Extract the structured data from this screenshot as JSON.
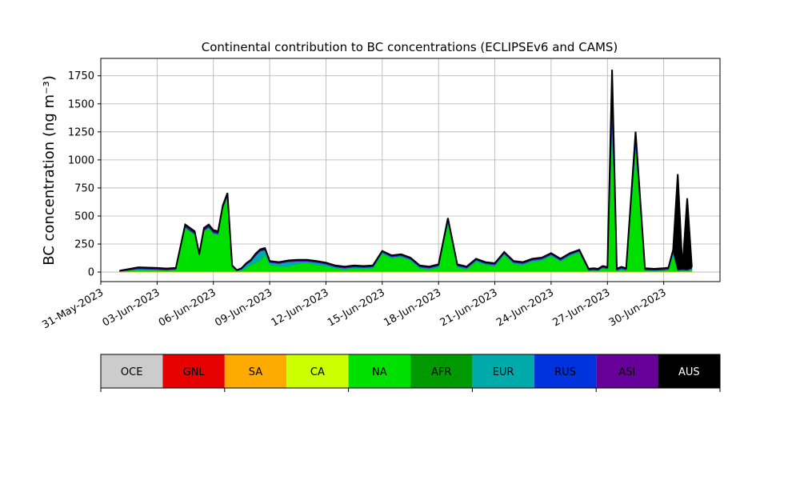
{
  "chart_data": {
    "type": "area",
    "title": "Continental contribution to BC concentrations (ECLIPSEv6 and CAMS)",
    "ylabel": "BC concentration (ng m⁻³)",
    "xlabel": "",
    "ylim": [
      -85,
      1905
    ],
    "xlim": [
      "2023-05-31",
      "2023-07-03"
    ],
    "grid": true,
    "x_ticks": [
      "31-May-2023",
      "03-Jun-2023",
      "06-Jun-2023",
      "09-Jun-2023",
      "12-Jun-2023",
      "15-Jun-2023",
      "18-Jun-2023",
      "21-Jun-2023",
      "24-Jun-2023",
      "27-Jun-2023",
      "30-Jun-2023"
    ],
    "y_ticks": [
      0,
      250,
      500,
      750,
      1000,
      1250,
      1500,
      1750
    ],
    "x": [
      "2023-06-01",
      "2023-06-02",
      "2023-06-03",
      "2023-06-03 12:00",
      "2023-06-04",
      "2023-06-04 12:00",
      "2023-06-05",
      "2023-06-05 06:00",
      "2023-06-05 12:00",
      "2023-06-05 18:00",
      "2023-06-06",
      "2023-06-06 06:00",
      "2023-06-06 12:00",
      "2023-06-06 18:00",
      "2023-06-07",
      "2023-06-07 06:00",
      "2023-06-07 12:00",
      "2023-06-07 18:00",
      "2023-06-08",
      "2023-06-08 06:00",
      "2023-06-08 12:00",
      "2023-06-08 18:00",
      "2023-06-09",
      "2023-06-09 12:00",
      "2023-06-10",
      "2023-06-10 12:00",
      "2023-06-11",
      "2023-06-11 12:00",
      "2023-06-12",
      "2023-06-12 12:00",
      "2023-06-13",
      "2023-06-13 12:00",
      "2023-06-14",
      "2023-06-14 12:00",
      "2023-06-15",
      "2023-06-15 12:00",
      "2023-06-16",
      "2023-06-16 12:00",
      "2023-06-17",
      "2023-06-17 12:00",
      "2023-06-18",
      "2023-06-18 12:00",
      "2023-06-19",
      "2023-06-19 12:00",
      "2023-06-20",
      "2023-06-20 12:00",
      "2023-06-21",
      "2023-06-21 12:00",
      "2023-06-22",
      "2023-06-22 12:00",
      "2023-06-23",
      "2023-06-23 12:00",
      "2023-06-24",
      "2023-06-24 12:00",
      "2023-06-25",
      "2023-06-25 12:00",
      "2023-06-26",
      "2023-06-26 06:00",
      "2023-06-26 12:00",
      "2023-06-26 18:00",
      "2023-06-27",
      "2023-06-27 06:00",
      "2023-06-27 12:00",
      "2023-06-27 18:00",
      "2023-06-28",
      "2023-06-28 12:00",
      "2023-06-29",
      "2023-06-29 12:00",
      "2023-06-30",
      "2023-06-30 06:00",
      "2023-06-30 12:00",
      "2023-06-30 18:00",
      "2023-07-01",
      "2023-07-01 06:00",
      "2023-07-01 12:00"
    ],
    "series": [
      {
        "name": "OCE",
        "color": "#cccccc",
        "values": [
          0,
          0,
          0,
          0,
          0,
          0,
          0,
          0,
          0,
          0,
          0,
          0,
          0,
          0,
          0,
          0,
          0,
          0,
          0,
          0,
          0,
          0,
          0,
          0,
          0,
          0,
          0,
          0,
          0,
          0,
          0,
          0,
          0,
          0,
          0,
          0,
          0,
          0,
          0,
          0,
          0,
          0,
          0,
          0,
          0,
          0,
          0,
          0,
          0,
          0,
          0,
          0,
          0,
          0,
          0,
          0,
          0,
          0,
          0,
          0,
          0,
          0,
          0,
          0,
          0,
          0,
          0,
          0,
          0,
          0,
          0,
          0,
          0,
          0,
          0
        ]
      },
      {
        "name": "GNL",
        "color": "#e60000",
        "values": [
          0,
          0,
          0,
          0,
          0,
          0,
          0,
          0,
          0,
          0,
          0,
          0,
          0,
          0,
          0,
          0,
          0,
          0,
          0,
          0,
          0,
          0,
          0,
          0,
          0,
          0,
          0,
          0,
          0,
          0,
          0,
          0,
          0,
          0,
          0,
          0,
          0,
          0,
          0,
          0,
          0,
          0,
          0,
          0,
          0,
          0,
          0,
          0,
          0,
          0,
          0,
          0,
          0,
          0,
          0,
          0,
          0,
          0,
          0,
          0,
          0,
          0,
          0,
          0,
          0,
          0,
          0,
          0,
          0,
          0,
          0,
          0,
          0,
          0,
          0
        ]
      },
      {
        "name": "SA",
        "color": "#ffaa00",
        "values": [
          2,
          2,
          2,
          2,
          2,
          2,
          2,
          2,
          2,
          2,
          2,
          2,
          2,
          2,
          2,
          2,
          2,
          2,
          2,
          2,
          2,
          2,
          2,
          2,
          2,
          2,
          2,
          2,
          2,
          2,
          2,
          2,
          2,
          2,
          2,
          2,
          2,
          2,
          2,
          2,
          2,
          2,
          2,
          2,
          2,
          2,
          2,
          2,
          2,
          2,
          2,
          2,
          2,
          2,
          2,
          2,
          2,
          2,
          2,
          2,
          2,
          2,
          2,
          2,
          2,
          2,
          2,
          2,
          2,
          2,
          2,
          2,
          2,
          2,
          2
        ]
      },
      {
        "name": "CA",
        "color": "#ccff00",
        "values": [
          2,
          2,
          2,
          2,
          2,
          2,
          2,
          2,
          2,
          2,
          2,
          2,
          2,
          2,
          2,
          2,
          2,
          2,
          2,
          2,
          2,
          2,
          2,
          2,
          2,
          2,
          2,
          2,
          2,
          2,
          2,
          2,
          2,
          2,
          2,
          2,
          2,
          2,
          2,
          2,
          2,
          2,
          2,
          2,
          2,
          2,
          2,
          2,
          2,
          2,
          2,
          2,
          2,
          2,
          2,
          2,
          2,
          2,
          2,
          2,
          2,
          2,
          2,
          2,
          2,
          2,
          2,
          2,
          2,
          2,
          2,
          2,
          2,
          2,
          2
        ]
      },
      {
        "name": "NA",
        "color": "#00e000",
        "values": [
          0,
          20,
          15,
          10,
          15,
          390,
          330,
          140,
          360,
          390,
          340,
          330,
          560,
          670,
          40,
          5,
          10,
          40,
          60,
          80,
          100,
          150,
          60,
          50,
          45,
          70,
          80,
          60,
          50,
          30,
          20,
          30,
          25,
          30,
          160,
          120,
          130,
          100,
          30,
          20,
          40,
          430,
          40,
          20,
          90,
          60,
          50,
          150,
          70,
          60,
          90,
          100,
          140,
          90,
          140,
          170,
          5,
          10,
          5,
          30,
          20,
          1300,
          5,
          20,
          10,
          1100,
          10,
          5,
          10,
          15,
          150,
          5,
          10,
          5,
          20
        ]
      },
      {
        "name": "AFR",
        "color": "#009900",
        "values": [
          0,
          1,
          1,
          1,
          1,
          2,
          2,
          1,
          2,
          2,
          2,
          2,
          3,
          3,
          1,
          1,
          1,
          1,
          1,
          1,
          1,
          1,
          1,
          1,
          1,
          1,
          1,
          1,
          1,
          1,
          1,
          1,
          1,
          1,
          1,
          1,
          1,
          1,
          1,
          1,
          1,
          2,
          1,
          1,
          1,
          1,
          1,
          1,
          1,
          1,
          1,
          1,
          1,
          1,
          1,
          1,
          1,
          1,
          1,
          1,
          1,
          5,
          1,
          1,
          1,
          5,
          1,
          1,
          1,
          1,
          1,
          1,
          1,
          1,
          1
        ]
      },
      {
        "name": "EUR",
        "color": "#00aaaa",
        "values": [
          2,
          3,
          3,
          3,
          3,
          3,
          3,
          3,
          3,
          3,
          3,
          3,
          3,
          3,
          3,
          3,
          10,
          20,
          30,
          60,
          80,
          40,
          20,
          20,
          40,
          20,
          10,
          20,
          15,
          10,
          10,
          10,
          10,
          10,
          10,
          10,
          10,
          10,
          10,
          10,
          10,
          10,
          10,
          10,
          10,
          10,
          10,
          10,
          10,
          10,
          10,
          10,
          10,
          10,
          10,
          10,
          5,
          5,
          5,
          5,
          5,
          50,
          5,
          5,
          5,
          20,
          5,
          5,
          5,
          5,
          20,
          5,
          5,
          5,
          5
        ]
      },
      {
        "name": "RUS",
        "color": "#0033dd",
        "values": [
          1,
          3,
          3,
          3,
          3,
          5,
          5,
          3,
          5,
          5,
          5,
          5,
          5,
          5,
          2,
          1,
          2,
          3,
          3,
          5,
          5,
          5,
          3,
          3,
          3,
          3,
          3,
          3,
          3,
          3,
          3,
          3,
          3,
          3,
          3,
          3,
          3,
          3,
          3,
          3,
          3,
          10,
          3,
          3,
          3,
          3,
          3,
          3,
          3,
          3,
          3,
          3,
          3,
          3,
          3,
          3,
          3,
          3,
          3,
          3,
          3,
          100,
          5,
          5,
          3,
          50,
          3,
          3,
          3,
          3,
          10,
          3,
          3,
          3,
          3
        ]
      },
      {
        "name": "ASI",
        "color": "#660099",
        "values": [
          2,
          5,
          5,
          5,
          5,
          10,
          10,
          5,
          10,
          10,
          10,
          10,
          10,
          10,
          5,
          2,
          3,
          5,
          5,
          5,
          5,
          5,
          5,
          5,
          5,
          5,
          5,
          5,
          5,
          5,
          5,
          5,
          5,
          5,
          5,
          5,
          5,
          5,
          5,
          5,
          5,
          10,
          5,
          5,
          5,
          5,
          5,
          5,
          5,
          5,
          5,
          5,
          5,
          5,
          5,
          5,
          5,
          5,
          5,
          5,
          5,
          50,
          5,
          5,
          5,
          20,
          5,
          5,
          5,
          5,
          5,
          5,
          5,
          5,
          5
        ]
      },
      {
        "name": "AUS",
        "color": "#000000",
        "values": [
          3,
          7,
          6,
          6,
          6,
          10,
          10,
          6,
          10,
          10,
          10,
          10,
          10,
          10,
          5,
          2,
          4,
          6,
          6,
          9,
          9,
          9,
          6,
          6,
          6,
          6,
          6,
          6,
          6,
          6,
          6,
          6,
          6,
          6,
          6,
          6,
          6,
          6,
          6,
          6,
          6,
          15,
          6,
          6,
          6,
          6,
          6,
          6,
          6,
          6,
          6,
          6,
          6,
          6,
          6,
          6,
          6,
          6,
          6,
          6,
          6,
          295,
          6,
          6,
          6,
          53,
          6,
          6,
          6,
          6,
          9,
          850,
          6,
          635,
          6
        ]
      }
    ],
    "legend": {
      "placement": "bottom",
      "items": [
        {
          "label": "OCE",
          "color": "#cccccc",
          "text_color": "#000000"
        },
        {
          "label": "GNL",
          "color": "#e60000",
          "text_color": "#000000"
        },
        {
          "label": "SA",
          "color": "#ffaa00",
          "text_color": "#000000"
        },
        {
          "label": "CA",
          "color": "#ccff00",
          "text_color": "#000000"
        },
        {
          "label": "NA",
          "color": "#00e000",
          "text_color": "#000000"
        },
        {
          "label": "AFR",
          "color": "#009900",
          "text_color": "#000000"
        },
        {
          "label": "EUR",
          "color": "#00aaaa",
          "text_color": "#000000"
        },
        {
          "label": "RUS",
          "color": "#0033dd",
          "text_color": "#000000"
        },
        {
          "label": "ASI",
          "color": "#660099",
          "text_color": "#000000"
        },
        {
          "label": "AUS",
          "color": "#000000",
          "text_color": "#ffffff"
        }
      ]
    }
  }
}
